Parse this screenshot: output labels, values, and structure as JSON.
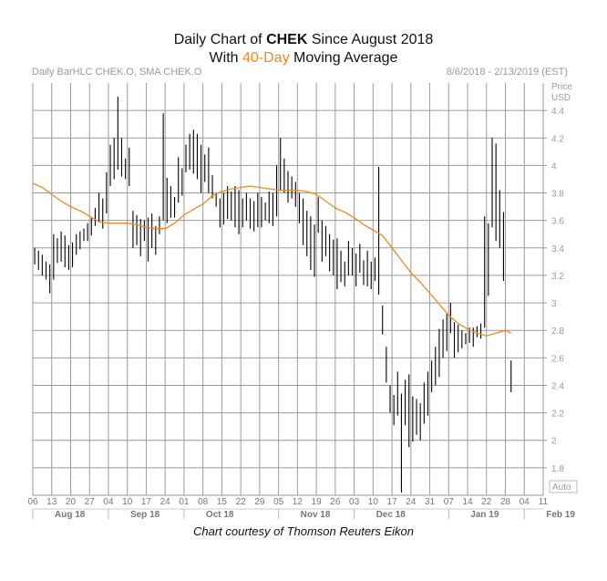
{
  "header": {
    "line1_prefix": "Daily Chart of ",
    "ticker": "CHEK",
    "line1_suffix": " Since August 2018",
    "line2_prefix": "With ",
    "ma_label": "40-Day",
    "line2_suffix": " Moving Average"
  },
  "subheader": {
    "left": "Daily BarHLC CHEK.O, SMA CHEK.O",
    "right": "8/6/2018 - 2/13/2019 (EST)"
  },
  "credit": "Chart courtesy of Thomson Reuters Eikon",
  "colors": {
    "bars": "#000000",
    "sma": "#f08a1e",
    "grid": "#9a9a9a",
    "axis_text": "#9a9a9a"
  },
  "chart_data": {
    "type": "bar-hlc",
    "title": "Daily Chart of CHEK Since August 2018",
    "ylabel": "Price USD",
    "ylim": [
      1.6,
      4.6
    ],
    "yticks": [
      4.4,
      4.2,
      4,
      3.8,
      3.6,
      3.4,
      3.2,
      3,
      2.8,
      2.6,
      2.4,
      2.2,
      2,
      1.8
    ],
    "ytick_labels": [
      "4.4",
      "4.2",
      "4",
      "3.8",
      "3.6",
      "3.4",
      "3.2",
      "3",
      "2.8",
      "2.6",
      "2.4",
      "2.2",
      "2",
      "1.8"
    ],
    "x_range": [
      0,
      27
    ],
    "xtick_labels": [
      "06",
      "13",
      "20",
      "27",
      "04",
      "10",
      "17",
      "24",
      "01",
      "08",
      "15",
      "22",
      "29",
      "05",
      "12",
      "19",
      "26",
      "03",
      "10",
      "17",
      "24",
      "31",
      "07",
      "14",
      "22",
      "28",
      "04",
      "11"
    ],
    "months": [
      {
        "label": "Aug 18",
        "from": 0,
        "to": 4
      },
      {
        "label": "Sep 18",
        "from": 4,
        "to": 8
      },
      {
        "label": "Oct 18",
        "from": 8,
        "to": 13
      },
      {
        "label": "Nov 18",
        "from": 13,
        "to": 17
      },
      {
        "label": "Dec 18",
        "from": 17,
        "to": 22
      },
      {
        "label": "Jan 19",
        "from": 22,
        "to": 26
      },
      {
        "label": "Feb 19",
        "from": 26,
        "to": 27
      }
    ],
    "auto_label": "Auto",
    "series": [
      {
        "name": "CHEK.O Daily BarHLC",
        "bars": [
          [
            0.1,
            3.4,
            3.28
          ],
          [
            0.3,
            3.38,
            3.24
          ],
          [
            0.5,
            3.35,
            3.2
          ],
          [
            0.7,
            3.3,
            3.17
          ],
          [
            0.9,
            3.28,
            3.07
          ],
          [
            1.1,
            3.5,
            3.17
          ],
          [
            1.3,
            3.47,
            3.29
          ],
          [
            1.5,
            3.52,
            3.3
          ],
          [
            1.7,
            3.49,
            3.26
          ],
          [
            1.9,
            3.42,
            3.24
          ],
          [
            2.1,
            3.44,
            3.26
          ],
          [
            2.3,
            3.5,
            3.35
          ],
          [
            2.5,
            3.52,
            3.39
          ],
          [
            2.7,
            3.54,
            3.45
          ],
          [
            2.9,
            3.58,
            3.45
          ],
          [
            3.1,
            3.62,
            3.49
          ],
          [
            3.3,
            3.69,
            3.56
          ],
          [
            3.5,
            3.8,
            3.59
          ],
          [
            3.7,
            3.76,
            3.54
          ],
          [
            3.9,
            3.95,
            3.65
          ],
          [
            4.1,
            4.15,
            3.85
          ],
          [
            4.3,
            4.2,
            3.9
          ],
          [
            4.5,
            4.5,
            3.97
          ],
          [
            4.7,
            4.2,
            3.92
          ],
          [
            4.9,
            4.05,
            3.9
          ],
          [
            5.1,
            4.13,
            3.85
          ],
          [
            5.3,
            3.67,
            3.4
          ],
          [
            5.5,
            3.64,
            3.42
          ],
          [
            5.7,
            3.61,
            3.34
          ],
          [
            5.9,
            3.6,
            3.45
          ],
          [
            6.1,
            3.62,
            3.3
          ],
          [
            6.3,
            3.65,
            3.4
          ],
          [
            6.5,
            3.56,
            3.35
          ],
          [
            6.7,
            3.63,
            3.5
          ],
          [
            6.9,
            4.38,
            3.6
          ],
          [
            7.1,
            3.91,
            3.58
          ],
          [
            7.3,
            3.85,
            3.62
          ],
          [
            7.5,
            3.77,
            3.62
          ],
          [
            7.7,
            4.06,
            3.73
          ],
          [
            7.9,
            3.98,
            3.78
          ],
          [
            8.1,
            4.15,
            3.95
          ],
          [
            8.3,
            4.23,
            3.97
          ],
          [
            8.5,
            4.26,
            3.94
          ],
          [
            8.7,
            4.23,
            3.9
          ],
          [
            8.9,
            4.15,
            3.8
          ],
          [
            9.1,
            4.08,
            3.88
          ],
          [
            9.3,
            4.13,
            3.8
          ],
          [
            9.5,
            3.93,
            3.76
          ],
          [
            9.7,
            3.8,
            3.7
          ],
          [
            9.9,
            3.76,
            3.55
          ],
          [
            10.1,
            3.8,
            3.57
          ],
          [
            10.3,
            3.85,
            3.61
          ],
          [
            10.5,
            3.81,
            3.6
          ],
          [
            10.7,
            3.85,
            3.55
          ],
          [
            10.9,
            3.82,
            3.5
          ],
          [
            11.1,
            3.76,
            3.55
          ],
          [
            11.3,
            3.8,
            3.6
          ],
          [
            11.5,
            3.76,
            3.54
          ],
          [
            11.7,
            3.74,
            3.52
          ],
          [
            11.9,
            3.8,
            3.55
          ],
          [
            12.1,
            3.77,
            3.55
          ],
          [
            12.3,
            3.73,
            3.6
          ],
          [
            12.5,
            3.81,
            3.58
          ],
          [
            12.7,
            3.8,
            3.56
          ],
          [
            12.9,
            4.0,
            3.63
          ],
          [
            13.1,
            4.2,
            3.82
          ],
          [
            13.3,
            4.05,
            3.8
          ],
          [
            13.5,
            3.96,
            3.73
          ],
          [
            13.7,
            3.92,
            3.76
          ],
          [
            13.9,
            3.88,
            3.7
          ],
          [
            14.1,
            3.8,
            3.58
          ],
          [
            14.3,
            3.76,
            3.42
          ],
          [
            14.5,
            3.67,
            3.34
          ],
          [
            14.7,
            3.63,
            3.24
          ],
          [
            14.9,
            3.57,
            3.19
          ],
          [
            15.1,
            3.77,
            3.51
          ],
          [
            15.3,
            3.6,
            3.3
          ],
          [
            15.5,
            3.56,
            3.34
          ],
          [
            15.7,
            3.5,
            3.23
          ],
          [
            15.9,
            3.46,
            3.2
          ],
          [
            16.1,
            3.47,
            3.1
          ],
          [
            16.3,
            3.38,
            3.15
          ],
          [
            16.5,
            3.3,
            3.12
          ],
          [
            16.7,
            3.45,
            3.2
          ],
          [
            16.9,
            3.4,
            3.2
          ],
          [
            17.1,
            3.36,
            3.12
          ],
          [
            17.3,
            3.43,
            3.22
          ],
          [
            17.5,
            3.31,
            3.13
          ],
          [
            17.7,
            3.38,
            3.12
          ],
          [
            17.9,
            3.3,
            3.1
          ],
          [
            18.1,
            3.33,
            3.16
          ],
          [
            18.3,
            3.99,
            3.06
          ],
          [
            18.5,
            2.98,
            2.77
          ],
          [
            18.7,
            2.68,
            2.42
          ],
          [
            18.9,
            2.4,
            2.2
          ],
          [
            19.1,
            2.33,
            2.11
          ],
          [
            19.3,
            2.5,
            2.18
          ],
          [
            19.5,
            2.34,
            1.62
          ],
          [
            19.7,
            2.44,
            2.11
          ],
          [
            19.9,
            2.48,
            1.95
          ],
          [
            20.1,
            2.32,
            1.99
          ],
          [
            20.3,
            2.3,
            2.04
          ],
          [
            20.5,
            2.27,
            2.0
          ],
          [
            20.7,
            2.42,
            2.12
          ],
          [
            20.9,
            2.5,
            2.18
          ],
          [
            21.1,
            2.58,
            2.35
          ],
          [
            21.3,
            2.68,
            2.4
          ],
          [
            21.5,
            2.81,
            2.46
          ],
          [
            21.7,
            2.88,
            2.6
          ],
          [
            21.9,
            2.92,
            2.65
          ],
          [
            22.1,
            3.0,
            2.78
          ],
          [
            22.3,
            2.86,
            2.6
          ],
          [
            22.5,
            2.84,
            2.64
          ],
          [
            22.7,
            2.8,
            2.67
          ],
          [
            22.9,
            2.78,
            2.7
          ],
          [
            23.1,
            2.82,
            2.71
          ],
          [
            23.3,
            2.82,
            2.68
          ],
          [
            23.5,
            2.83,
            2.75
          ],
          [
            23.7,
            2.85,
            2.74
          ],
          [
            23.9,
            3.63,
            2.82
          ],
          [
            24.1,
            3.58,
            3.05
          ],
          [
            24.3,
            4.2,
            3.55
          ],
          [
            24.5,
            4.16,
            3.45
          ],
          [
            24.7,
            3.82,
            3.4
          ],
          [
            24.9,
            3.66,
            3.16
          ],
          [
            25.3,
            2.58,
            2.35
          ]
        ]
      },
      {
        "name": "SMA CHEK.O (40-Day)",
        "points": [
          [
            0.0,
            3.87
          ],
          [
            0.5,
            3.84
          ],
          [
            1.0,
            3.79
          ],
          [
            1.5,
            3.74
          ],
          [
            2.0,
            3.7
          ],
          [
            2.5,
            3.67
          ],
          [
            3.0,
            3.63
          ],
          [
            3.5,
            3.59
          ],
          [
            4.0,
            3.58
          ],
          [
            4.5,
            3.58
          ],
          [
            5.0,
            3.58
          ],
          [
            5.5,
            3.57
          ],
          [
            6.0,
            3.55
          ],
          [
            6.5,
            3.54
          ],
          [
            7.0,
            3.54
          ],
          [
            7.5,
            3.58
          ],
          [
            8.0,
            3.64
          ],
          [
            8.5,
            3.68
          ],
          [
            9.0,
            3.72
          ],
          [
            9.5,
            3.78
          ],
          [
            10.0,
            3.81
          ],
          [
            10.5,
            3.83
          ],
          [
            11.0,
            3.84
          ],
          [
            11.5,
            3.85
          ],
          [
            12.0,
            3.84
          ],
          [
            12.5,
            3.83
          ],
          [
            13.0,
            3.82
          ],
          [
            13.5,
            3.82
          ],
          [
            14.0,
            3.82
          ],
          [
            14.5,
            3.81
          ],
          [
            15.0,
            3.79
          ],
          [
            15.5,
            3.74
          ],
          [
            16.0,
            3.69
          ],
          [
            16.5,
            3.66
          ],
          [
            17.0,
            3.62
          ],
          [
            17.5,
            3.57
          ],
          [
            18.0,
            3.53
          ],
          [
            18.5,
            3.49
          ],
          [
            19.0,
            3.4
          ],
          [
            19.5,
            3.31
          ],
          [
            20.0,
            3.22
          ],
          [
            20.5,
            3.15
          ],
          [
            21.0,
            3.07
          ],
          [
            21.5,
            2.99
          ],
          [
            22.0,
            2.91
          ],
          [
            22.5,
            2.85
          ],
          [
            23.0,
            2.81
          ],
          [
            23.5,
            2.78
          ],
          [
            24.0,
            2.76
          ],
          [
            24.5,
            2.78
          ],
          [
            25.0,
            2.8
          ],
          [
            25.3,
            2.78
          ]
        ]
      }
    ]
  }
}
